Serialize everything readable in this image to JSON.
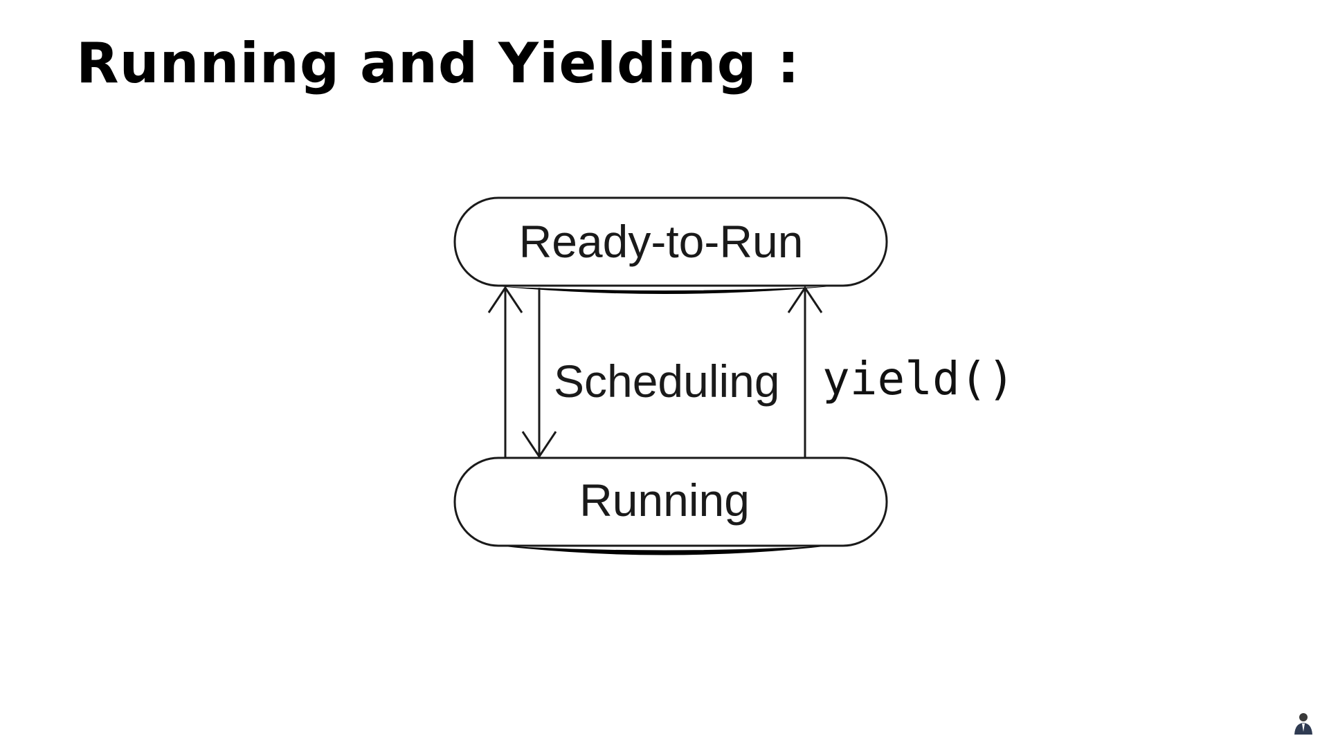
{
  "slide": {
    "title": "Running and Yielding :"
  },
  "diagram": {
    "states": {
      "ready": "Ready-to-Run",
      "running": "Running"
    },
    "edges": {
      "scheduling_label": "Scheduling",
      "yield_label": "yield()"
    }
  },
  "colors": {
    "background": "#ffffff",
    "title": "#000000",
    "stroke": "#1a1a1a"
  },
  "icons": {
    "presenter": "presenter-avatar-icon"
  }
}
